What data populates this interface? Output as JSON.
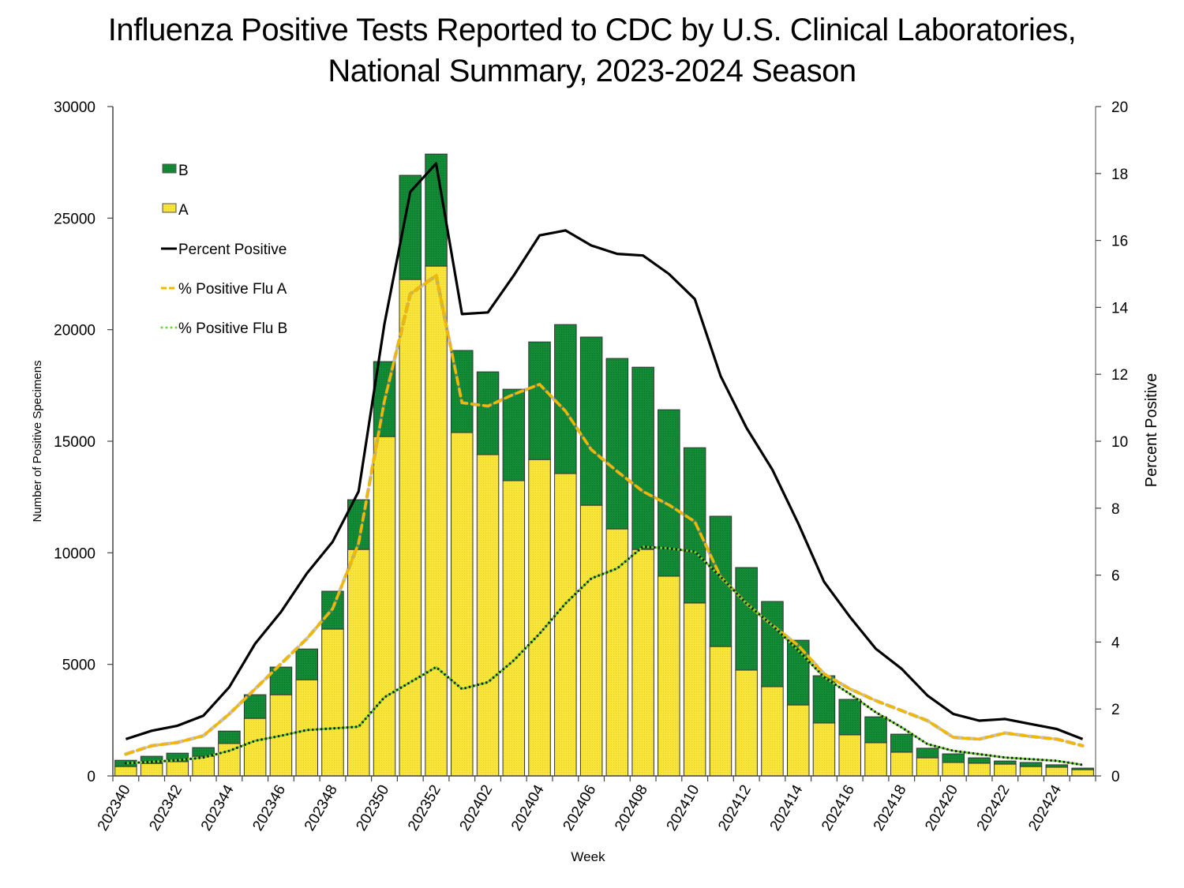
{
  "chart_data": {
    "type": "bar",
    "title": [
      "Influenza Positive Tests Reported to CDC by U.S. Clinical Laboratories,",
      "National Summary, 2023-2024 Season"
    ],
    "xlabel": "Week",
    "ylabel": "Number of Positive Specimens",
    "y2label": "Percent Positive",
    "ylim": [
      0,
      30000
    ],
    "y2lim": [
      0,
      20
    ],
    "yticks": [
      0,
      5000,
      10000,
      15000,
      20000,
      25000,
      30000
    ],
    "y2ticks": [
      0,
      2,
      4,
      6,
      8,
      10,
      12,
      14,
      16,
      18,
      20
    ],
    "grid": false,
    "legend_position": "top-left",
    "categories": [
      "202340",
      "202341",
      "202342",
      "202343",
      "202344",
      "202345",
      "202346",
      "202347",
      "202348",
      "202349",
      "202350",
      "202351",
      "202352",
      "202401",
      "202402",
      "202403",
      "202404",
      "202405",
      "202406",
      "202407",
      "202408",
      "202409",
      "202410",
      "202411",
      "202412",
      "202413",
      "202414",
      "202415",
      "202416",
      "202417",
      "202418",
      "202419",
      "202420",
      "202421",
      "202422",
      "202423",
      "202424",
      "202425"
    ],
    "xtick_labels": [
      "202340",
      "202342",
      "202344",
      "202346",
      "202348",
      "202350",
      "202352",
      "202402",
      "202404",
      "202406",
      "202408",
      "202410",
      "202412",
      "202414",
      "202416",
      "202418",
      "202420",
      "202422",
      "202424"
    ],
    "series": [
      {
        "name": "A",
        "kind": "bar",
        "stack": "specimens",
        "axis": "left",
        "color": "#f7e53b",
        "values": [
          420,
          560,
          640,
          880,
          1450,
          2580,
          3640,
          4310,
          6580,
          10150,
          15210,
          22250,
          22850,
          15390,
          14400,
          13230,
          14180,
          13550,
          12130,
          11070,
          10150,
          8950,
          7750,
          5800,
          4740,
          4000,
          3180,
          2370,
          1840,
          1490,
          1060,
          810,
          600,
          570,
          530,
          420,
          390,
          280
        ]
      },
      {
        "name": "B",
        "kind": "bar",
        "stack": "specimens",
        "axis": "left",
        "color": "#138a36",
        "values": [
          280,
          320,
          380,
          390,
          560,
          1060,
          1240,
          1380,
          1700,
          2230,
          3360,
          4670,
          5020,
          3680,
          3710,
          4100,
          5270,
          6680,
          7540,
          7640,
          8170,
          7460,
          6960,
          5840,
          4600,
          3820,
          2900,
          2120,
          1590,
          1160,
          810,
          430,
          390,
          240,
          140,
          180,
          110,
          70
        ]
      },
      {
        "name": "Percent Positive",
        "kind": "line",
        "axis": "right",
        "color": "#000000",
        "dash": "solid",
        "values": [
          1.1,
          1.35,
          1.5,
          1.8,
          2.65,
          3.95,
          4.9,
          6.05,
          7.0,
          8.5,
          13.5,
          17.45,
          18.3,
          13.8,
          13.85,
          14.95,
          16.15,
          16.3,
          15.85,
          15.6,
          15.55,
          15.0,
          14.25,
          11.95,
          10.4,
          9.15,
          7.55,
          5.8,
          4.75,
          3.8,
          3.2,
          2.4,
          1.85,
          1.65,
          1.7,
          1.55,
          1.4,
          1.1
        ]
      },
      {
        "name": "% Positive Flu A",
        "kind": "line",
        "axis": "right",
        "color": "#f2b705",
        "dash": "dashed",
        "values": [
          0.65,
          0.9,
          1.0,
          1.2,
          1.85,
          2.6,
          3.35,
          4.1,
          5.0,
          6.95,
          11.2,
          14.4,
          14.95,
          11.15,
          11.05,
          11.4,
          11.7,
          10.9,
          9.75,
          9.1,
          8.5,
          8.1,
          7.6,
          5.95,
          5.15,
          4.5,
          3.9,
          3.05,
          2.6,
          2.25,
          1.95,
          1.65,
          1.15,
          1.1,
          1.28,
          1.18,
          1.1,
          0.9
        ]
      },
      {
        "name": "% Positive Flu B",
        "kind": "line",
        "axis": "right",
        "color": "#66dd22",
        "dash": "dotted",
        "values": [
          0.38,
          0.42,
          0.47,
          0.55,
          0.75,
          1.05,
          1.2,
          1.37,
          1.42,
          1.47,
          2.35,
          2.8,
          3.25,
          2.6,
          2.8,
          3.45,
          4.25,
          5.15,
          5.9,
          6.2,
          6.85,
          6.8,
          6.7,
          5.95,
          5.15,
          4.5,
          3.75,
          2.95,
          2.45,
          1.9,
          1.45,
          0.95,
          0.75,
          0.65,
          0.55,
          0.5,
          0.45,
          0.33
        ]
      }
    ],
    "legend": [
      {
        "label": "B",
        "symbol": "box",
        "color": "#138a36"
      },
      {
        "label": "A",
        "symbol": "box",
        "color": "#f7e53b"
      },
      {
        "label": "Percent Positive",
        "symbol": "line-solid",
        "color": "#000000"
      },
      {
        "label": "% Positive Flu A",
        "symbol": "line-dashed",
        "color": "#f2b705"
      },
      {
        "label": "% Positive Flu B",
        "symbol": "line-dotted",
        "color": "#66dd22"
      }
    ]
  }
}
